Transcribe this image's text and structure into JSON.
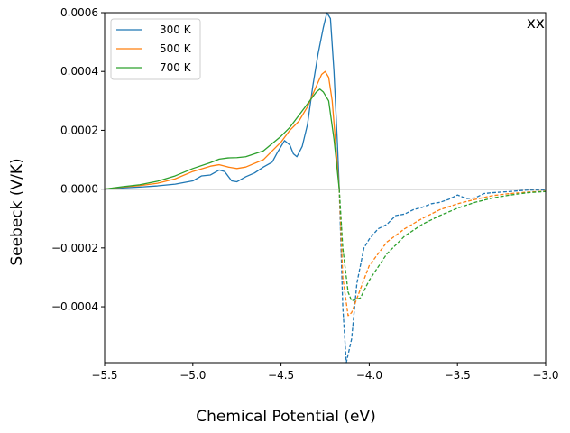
{
  "chart_data": {
    "type": "line",
    "title": "",
    "corner_label": "xx",
    "xlabel": "Chemical Potential (eV)",
    "ylabel": "Seebeck (V/K)",
    "xlim": [
      -5.5,
      -3.0
    ],
    "ylim": [
      -0.00059,
      0.0006
    ],
    "x_ticks": [
      -5.5,
      -5.0,
      -4.5,
      -4.0,
      -3.5,
      -3.0
    ],
    "x_tick_labels": [
      "−5.5",
      "−5.0",
      "−4.5",
      "−4.0",
      "−3.5",
      "−3.0"
    ],
    "y_ticks": [
      -0.0004,
      -0.0002,
      0.0,
      0.0002,
      0.0004,
      0.0006
    ],
    "y_tick_labels": [
      "−0.0004",
      "−0.0002",
      "0.0000",
      "0.0002",
      "0.0004",
      "0.0006"
    ],
    "zero_line": true,
    "legend_position": "top-left",
    "note": "",
    "series": [
      {
        "name": "300 K",
        "color": "#1f77b4",
        "positive_points": [
          [
            -5.5,
            0.0
          ],
          [
            -5.4,
            4e-06
          ],
          [
            -5.3,
            7e-06
          ],
          [
            -5.2,
            1.1e-05
          ],
          [
            -5.1,
            1.7e-05
          ],
          [
            -5.0,
            2.8e-05
          ],
          [
            -4.95,
            4.5e-05
          ],
          [
            -4.9,
            4.8e-05
          ],
          [
            -4.85,
            6.5e-05
          ],
          [
            -4.82,
            6e-05
          ],
          [
            -4.78,
            2.8e-05
          ],
          [
            -4.75,
            2.5e-05
          ],
          [
            -4.7,
            4.2e-05
          ],
          [
            -4.65,
            5.5e-05
          ],
          [
            -4.6,
            7.5e-05
          ],
          [
            -4.55,
            9.2e-05
          ],
          [
            -4.52,
            0.000125
          ],
          [
            -4.48,
            0.000165
          ],
          [
            -4.45,
            0.00015
          ],
          [
            -4.43,
            0.00012
          ],
          [
            -4.41,
            0.00011
          ],
          [
            -4.38,
            0.000145
          ],
          [
            -4.35,
            0.00022
          ],
          [
            -4.32,
            0.00035
          ],
          [
            -4.29,
            0.00046
          ],
          [
            -4.26,
            0.00055
          ],
          [
            -4.24,
            0.0006
          ],
          [
            -4.22,
            0.00058
          ],
          [
            -4.2,
            0.0004
          ],
          [
            -4.18,
            0.00015
          ],
          [
            -4.17,
            0.0
          ]
        ],
        "negative_points": [
          [
            -4.17,
            0.0
          ],
          [
            -4.16,
            -0.0002
          ],
          [
            -4.15,
            -0.0004
          ],
          [
            -4.13,
            -0.00059
          ],
          [
            -4.1,
            -0.00051
          ],
          [
            -4.07,
            -0.00032
          ],
          [
            -4.03,
            -0.0002
          ],
          [
            -4.0,
            -0.00017
          ],
          [
            -3.95,
            -0.000135
          ],
          [
            -3.9,
            -0.00012
          ],
          [
            -3.85,
            -9e-05
          ],
          [
            -3.8,
            -8.5e-05
          ],
          [
            -3.75,
            -7e-05
          ],
          [
            -3.7,
            -6.2e-05
          ],
          [
            -3.65,
            -5e-05
          ],
          [
            -3.6,
            -4.5e-05
          ],
          [
            -3.55,
            -3.5e-05
          ],
          [
            -3.5,
            -2e-05
          ],
          [
            -3.45,
            -3.2e-05
          ],
          [
            -3.4,
            -3e-05
          ],
          [
            -3.35,
            -1.5e-05
          ],
          [
            -3.3,
            -1.2e-05
          ],
          [
            -3.2,
            -8e-06
          ],
          [
            -3.1,
            -3e-06
          ],
          [
            -3.0,
            -3e-06
          ]
        ]
      },
      {
        "name": "500 K",
        "color": "#ff7f0e",
        "positive_points": [
          [
            -5.5,
            0.0
          ],
          [
            -5.4,
            7e-06
          ],
          [
            -5.3,
            1.2e-05
          ],
          [
            -5.2,
            2e-05
          ],
          [
            -5.1,
            3.5e-05
          ],
          [
            -5.0,
            6e-05
          ],
          [
            -4.9,
            7.8e-05
          ],
          [
            -4.85,
            8.3e-05
          ],
          [
            -4.8,
            7.5e-05
          ],
          [
            -4.75,
            7e-05
          ],
          [
            -4.7,
            7.5e-05
          ],
          [
            -4.6,
            0.0001
          ],
          [
            -4.5,
            0.00016
          ],
          [
            -4.45,
            0.0002
          ],
          [
            -4.4,
            0.00023
          ],
          [
            -4.35,
            0.00028
          ],
          [
            -4.3,
            0.00035
          ],
          [
            -4.27,
            0.00039
          ],
          [
            -4.25,
            0.0004
          ],
          [
            -4.23,
            0.00038
          ],
          [
            -4.21,
            0.0003
          ],
          [
            -4.19,
            0.00015
          ],
          [
            -4.17,
            0.0
          ]
        ],
        "negative_points": [
          [
            -4.17,
            0.0
          ],
          [
            -4.15,
            -0.0003
          ],
          [
            -4.12,
            -0.00043
          ],
          [
            -4.1,
            -0.00042
          ],
          [
            -4.05,
            -0.00034
          ],
          [
            -4.0,
            -0.00026
          ],
          [
            -3.9,
            -0.00018
          ],
          [
            -3.8,
            -0.000135
          ],
          [
            -3.7,
            -0.0001
          ],
          [
            -3.6,
            -7e-05
          ],
          [
            -3.5,
            -5e-05
          ],
          [
            -3.4,
            -3.5e-05
          ],
          [
            -3.3,
            -2.2e-05
          ],
          [
            -3.2,
            -1.5e-05
          ],
          [
            -3.1,
            -1e-05
          ],
          [
            -3.0,
            -7e-06
          ]
        ]
      },
      {
        "name": "700 K",
        "color": "#2ca02c",
        "positive_points": [
          [
            -5.5,
            0.0
          ],
          [
            -5.4,
            8e-06
          ],
          [
            -5.3,
            1.5e-05
          ],
          [
            -5.2,
            2.7e-05
          ],
          [
            -5.1,
            4.5e-05
          ],
          [
            -5.0,
            7e-05
          ],
          [
            -4.9,
            9e-05
          ],
          [
            -4.85,
            0.000102
          ],
          [
            -4.8,
            0.000106
          ],
          [
            -4.75,
            0.000107
          ],
          [
            -4.7,
            0.00011
          ],
          [
            -4.6,
            0.00013
          ],
          [
            -4.5,
            0.00018
          ],
          [
            -4.45,
            0.00021
          ],
          [
            -4.4,
            0.00025
          ],
          [
            -4.35,
            0.00029
          ],
          [
            -4.3,
            0.00033
          ],
          [
            -4.28,
            0.00034
          ],
          [
            -4.26,
            0.00033
          ],
          [
            -4.23,
            0.0003
          ],
          [
            -4.2,
            0.00017
          ],
          [
            -4.17,
            0.0
          ]
        ],
        "negative_points": [
          [
            -4.17,
            0.0
          ],
          [
            -4.15,
            -0.0002
          ],
          [
            -4.12,
            -0.00035
          ],
          [
            -4.1,
            -0.00038
          ],
          [
            -4.05,
            -0.00037
          ],
          [
            -4.0,
            -0.00031
          ],
          [
            -3.9,
            -0.00022
          ],
          [
            -3.8,
            -0.00016
          ],
          [
            -3.7,
            -0.00012
          ],
          [
            -3.6,
            -9e-05
          ],
          [
            -3.5,
            -6.5e-05
          ],
          [
            -3.4,
            -4.5e-05
          ],
          [
            -3.3,
            -3e-05
          ],
          [
            -3.2,
            -2e-05
          ],
          [
            -3.1,
            -1.2e-05
          ],
          [
            -3.0,
            -8e-06
          ]
        ]
      }
    ]
  }
}
